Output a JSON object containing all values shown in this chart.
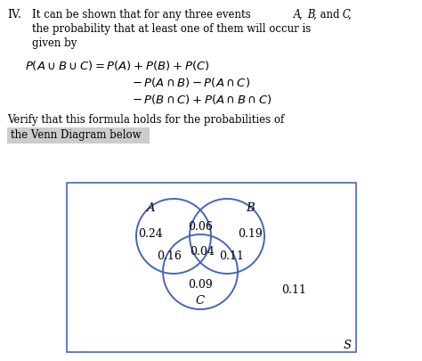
{
  "circle_color": "#4466bb",
  "box_color": "#4466bb",
  "background_color": "#ffffff",
  "highlight_color": "#cccccc",
  "prob_A_only": "0.24",
  "prob_B_only": "0.19",
  "prob_C_only": "0.09",
  "prob_AB": "0.06",
  "prob_AC": "0.16",
  "prob_BC": "0.11",
  "prob_ABC": "0.04",
  "prob_outside": "0.11",
  "fontsize_body": 8.5,
  "fontsize_formula": 9.5,
  "fontsize_venn": 9,
  "fontsize_label": 9.5
}
